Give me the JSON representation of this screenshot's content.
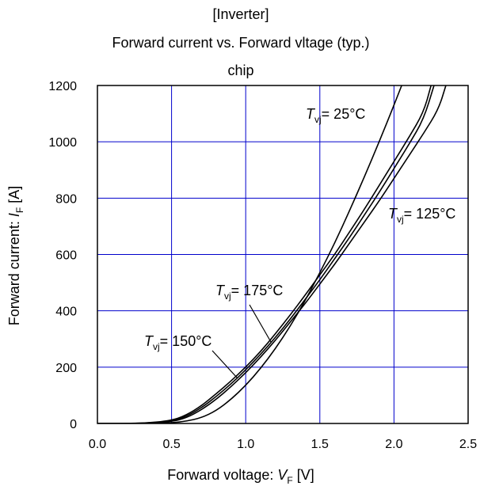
{
  "chart_data": {
    "type": "line",
    "title_lines": [
      "[Inverter]",
      "Forward current vs. Forward vltage (typ.)",
      "chip"
    ],
    "xlabel": {
      "main": "Forward voltage: ",
      "var": "V",
      "sub": "F",
      "unit": " [V]"
    },
    "ylabel": {
      "main": "Forward current: ",
      "var": "I",
      "sub": "F",
      "unit": " [A]"
    },
    "xlim": [
      0.0,
      2.5
    ],
    "ylim": [
      0,
      1200
    ],
    "xticks": [
      "0.0",
      "0.5",
      "1.0",
      "1.5",
      "2.0",
      "2.5"
    ],
    "yticks": [
      "0",
      "200",
      "400",
      "600",
      "800",
      "1000",
      "1200"
    ],
    "grid": true,
    "series": [
      {
        "name": "25°C",
        "x": [
          0.3,
          0.5,
          0.6,
          0.7,
          0.8,
          0.9,
          1.0,
          1.1,
          1.2,
          1.3,
          1.4,
          1.5,
          1.6,
          1.7,
          1.8,
          1.9,
          2.0,
          2.1,
          2.2
        ],
        "y": [
          0,
          2,
          8,
          20,
          45,
          85,
          135,
          195,
          265,
          345,
          435,
          535,
          640,
          755,
          875,
          1000,
          1130,
          1265,
          1400
        ]
      },
      {
        "name": "125°C",
        "x": [
          0.3,
          0.5,
          0.6,
          0.7,
          0.8,
          0.9,
          1.0,
          1.1,
          1.2,
          1.3,
          1.4,
          1.5,
          1.6,
          1.7,
          1.8,
          1.9,
          2.0,
          2.1,
          2.2,
          2.3,
          2.35
        ],
        "y": [
          0,
          6,
          20,
          48,
          85,
          130,
          180,
          235,
          295,
          360,
          425,
          495,
          565,
          640,
          715,
          790,
          870,
          950,
          1030,
          1115,
          1200
        ]
      },
      {
        "name": "150°C",
        "x": [
          0.3,
          0.5,
          0.6,
          0.7,
          0.8,
          0.9,
          1.0,
          1.1,
          1.2,
          1.3,
          1.4,
          1.5,
          1.6,
          1.7,
          1.8,
          1.9,
          2.0,
          2.1,
          2.2,
          2.27
        ],
        "y": [
          0,
          8,
          25,
          55,
          95,
          140,
          190,
          245,
          305,
          370,
          440,
          510,
          585,
          660,
          740,
          820,
          905,
          990,
          1080,
          1200
        ]
      },
      {
        "name": "175°C",
        "x": [
          0.3,
          0.5,
          0.6,
          0.7,
          0.8,
          0.9,
          1.0,
          1.1,
          1.2,
          1.3,
          1.4,
          1.5,
          1.6,
          1.7,
          1.8,
          1.9,
          2.0,
          2.1,
          2.2,
          2.25
        ],
        "y": [
          0,
          10,
          30,
          62,
          105,
          150,
          200,
          255,
          318,
          385,
          455,
          528,
          600,
          680,
          760,
          845,
          930,
          1015,
          1105,
          1200
        ]
      }
    ],
    "annotations": [
      {
        "var": "T",
        "sub": "vj",
        "text": "= 25°C"
      },
      {
        "var": "T",
        "sub": "vj",
        "text": "= 125°C"
      },
      {
        "var": "T",
        "sub": "vj",
        "text": "= 175°C"
      },
      {
        "var": "T",
        "sub": "vj",
        "text": "= 150°C"
      }
    ],
    "colors": {
      "curve": "#000000",
      "grid": "#0000cc",
      "frame": "#000000"
    }
  }
}
